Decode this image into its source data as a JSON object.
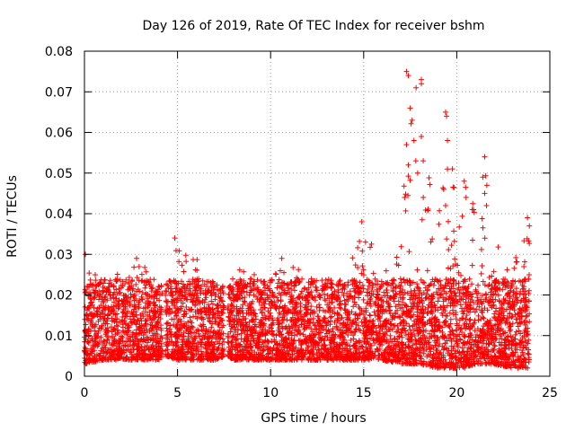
{
  "chart_data": {
    "type": "scatter",
    "title": "Day 126 of 2019, Rate Of TEC Index for receiver bshm",
    "xlabel": "GPS time / hours",
    "ylabel": "ROTI / TECUs",
    "xlim": [
      0,
      25
    ],
    "ylim": [
      0,
      0.08
    ],
    "xticks": [
      0,
      5,
      10,
      15,
      20,
      25
    ],
    "xtick_labels": [
      "0",
      "5",
      "10",
      "15",
      "20",
      "25"
    ],
    "yticks": [
      0,
      0.01,
      0.02,
      0.03,
      0.04,
      0.05,
      0.06,
      0.07,
      0.08
    ],
    "ytick_labels": [
      "0",
      "0.01",
      "0.02",
      "0.03",
      "0.04",
      "0.05",
      "0.06",
      "0.07",
      "0.08"
    ],
    "grid": true,
    "marker": "+",
    "marker_color": "#ff0000",
    "series": [
      {
        "name": "ROTI",
        "description": "dense per-satellite ROTI samples, approx 0.003-0.03 TECU/min baseline with spikes",
        "envelope": [
          {
            "x": 0.0,
            "low": 0.003,
            "high": 0.03
          },
          {
            "x": 1.0,
            "low": 0.004,
            "high": 0.026
          },
          {
            "x": 2.0,
            "low": 0.004,
            "high": 0.025
          },
          {
            "x": 3.0,
            "low": 0.004,
            "high": 0.029
          },
          {
            "x": 4.0,
            "low": 0.004,
            "high": 0.022
          },
          {
            "x": 4.3,
            "low": 0.005,
            "high": 0.024
          },
          {
            "x": 5.0,
            "low": 0.004,
            "high": 0.034
          },
          {
            "x": 6.0,
            "low": 0.004,
            "high": 0.029
          },
          {
            "x": 7.0,
            "low": 0.004,
            "high": 0.023
          },
          {
            "x": 7.7,
            "low": 0.005,
            "high": 0.022
          },
          {
            "x": 8.0,
            "low": 0.004,
            "high": 0.026
          },
          {
            "x": 9.0,
            "low": 0.004,
            "high": 0.027
          },
          {
            "x": 10.0,
            "low": 0.004,
            "high": 0.028
          },
          {
            "x": 11.0,
            "low": 0.004,
            "high": 0.029
          },
          {
            "x": 12.0,
            "low": 0.004,
            "high": 0.027
          },
          {
            "x": 13.0,
            "low": 0.004,
            "high": 0.025
          },
          {
            "x": 14.0,
            "low": 0.004,
            "high": 0.024
          },
          {
            "x": 15.0,
            "low": 0.004,
            "high": 0.038
          },
          {
            "x": 16.0,
            "low": 0.004,
            "high": 0.027
          },
          {
            "x": 17.0,
            "low": 0.003,
            "high": 0.03
          },
          {
            "x": 17.4,
            "low": 0.003,
            "high": 0.075
          },
          {
            "x": 18.0,
            "low": 0.003,
            "high": 0.073
          },
          {
            "x": 19.0,
            "low": 0.002,
            "high": 0.04
          },
          {
            "x": 19.5,
            "low": 0.002,
            "high": 0.065
          },
          {
            "x": 20.0,
            "low": 0.002,
            "high": 0.04
          },
          {
            "x": 20.5,
            "low": 0.002,
            "high": 0.048
          },
          {
            "x": 21.0,
            "low": 0.003,
            "high": 0.042
          },
          {
            "x": 21.5,
            "low": 0.003,
            "high": 0.054
          },
          {
            "x": 22.0,
            "low": 0.003,
            "high": 0.035
          },
          {
            "x": 23.0,
            "low": 0.002,
            "high": 0.028
          },
          {
            "x": 23.9,
            "low": 0.002,
            "high": 0.039
          }
        ],
        "gaps": [
          [
            4.2,
            4.35
          ],
          [
            7.5,
            7.7
          ]
        ],
        "spikes": [
          {
            "x": 0.05,
            "y": 0.03
          },
          {
            "x": 2.8,
            "y": 0.029
          },
          {
            "x": 4.85,
            "y": 0.034
          },
          {
            "x": 10.6,
            "y": 0.029
          },
          {
            "x": 14.9,
            "y": 0.038
          },
          {
            "x": 15.1,
            "y": 0.033
          },
          {
            "x": 17.3,
            "y": 0.075
          },
          {
            "x": 17.4,
            "y": 0.074
          },
          {
            "x": 17.5,
            "y": 0.066
          },
          {
            "x": 17.6,
            "y": 0.063
          },
          {
            "x": 17.7,
            "y": 0.058
          },
          {
            "x": 17.8,
            "y": 0.053
          },
          {
            "x": 17.9,
            "y": 0.05
          },
          {
            "x": 18.1,
            "y": 0.073
          },
          {
            "x": 18.1,
            "y": 0.072
          },
          {
            "x": 18.1,
            "y": 0.059
          },
          {
            "x": 18.2,
            "y": 0.053
          },
          {
            "x": 18.2,
            "y": 0.044
          },
          {
            "x": 17.3,
            "y": 0.057
          },
          {
            "x": 17.4,
            "y": 0.052
          },
          {
            "x": 17.2,
            "y": 0.044
          },
          {
            "x": 19.4,
            "y": 0.065
          },
          {
            "x": 19.45,
            "y": 0.064
          },
          {
            "x": 19.5,
            "y": 0.058
          },
          {
            "x": 19.5,
            "y": 0.051
          },
          {
            "x": 19.3,
            "y": 0.046
          },
          {
            "x": 19.4,
            "y": 0.042
          },
          {
            "x": 20.4,
            "y": 0.048
          },
          {
            "x": 20.5,
            "y": 0.044
          },
          {
            "x": 20.9,
            "y": 0.041
          },
          {
            "x": 21.5,
            "y": 0.054
          },
          {
            "x": 21.4,
            "y": 0.049
          },
          {
            "x": 21.5,
            "y": 0.045
          },
          {
            "x": 21.6,
            "y": 0.042
          },
          {
            "x": 23.8,
            "y": 0.039
          },
          {
            "x": 23.9,
            "y": 0.037
          }
        ]
      }
    ]
  }
}
